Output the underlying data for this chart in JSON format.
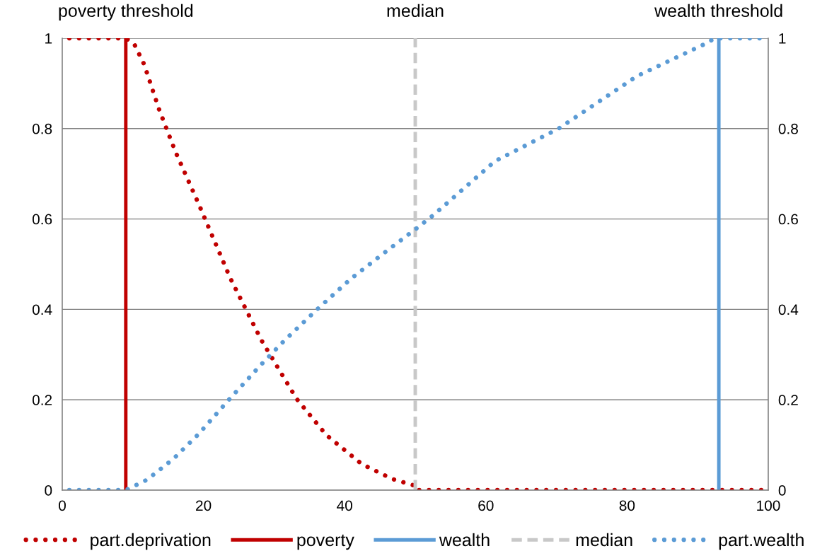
{
  "chart_data": {
    "type": "line",
    "xlim": [
      0,
      100
    ],
    "xticks": [
      0,
      20,
      40,
      60,
      80,
      100
    ],
    "ylim": [
      0,
      1
    ],
    "yticks": [
      0,
      0.2,
      0.4,
      0.6,
      0.8,
      1
    ],
    "y2lim": [
      0,
      1
    ],
    "y2ticks": [
      0,
      0.2,
      0.4,
      0.6,
      0.8,
      1
    ],
    "grid": "y",
    "legend": "bottom",
    "annotations": [
      {
        "text": "poverty threshold",
        "x": 9,
        "y": 1
      },
      {
        "text": "median",
        "x": 50,
        "y": 1
      },
      {
        "text": "wealth threshold",
        "x": 93,
        "y": 1
      }
    ],
    "series": [
      {
        "name": "part.deprivation",
        "color": "#c00000",
        "line_style": "dotted",
        "x": [
          1,
          9,
          10.2,
          11.6,
          13.7,
          16.0,
          19.3,
          23.8,
          28.2,
          33.2,
          37.4,
          42.4,
          46.7,
          49.7,
          50,
          100
        ],
        "values": [
          1,
          1,
          0.987,
          0.942,
          0.843,
          0.75,
          0.634,
          0.469,
          0.332,
          0.202,
          0.122,
          0.058,
          0.025,
          0.011,
          0,
          0
        ]
      },
      {
        "name": "poverty",
        "color": "#c00000",
        "line_style": "solid",
        "x": [
          9,
          9
        ],
        "values": [
          0,
          1
        ]
      },
      {
        "name": "wealth",
        "color": "#5b9bd5",
        "line_style": "solid",
        "x": [
          93,
          93
        ],
        "values": [
          0,
          1
        ]
      },
      {
        "name": "median",
        "color": "#c8c8c8",
        "line_style": "dashed",
        "x": [
          50,
          50
        ],
        "values": [
          0,
          1
        ]
      },
      {
        "name": "part.wealth",
        "color": "#5b9bd5",
        "line_style": "dotted",
        "x": [
          1,
          9,
          12.0,
          15.8,
          19.3,
          23.6,
          28.0,
          31.4,
          36.1,
          40.9,
          46.1,
          50.0,
          52.6,
          61.3,
          70.3,
          81.4,
          91.4,
          92.4,
          93,
          100
        ],
        "values": [
          0,
          0,
          0.023,
          0.07,
          0.124,
          0.2,
          0.275,
          0.33,
          0.4,
          0.468,
          0.531,
          0.577,
          0.609,
          0.728,
          0.8,
          0.916,
          0.99,
          1,
          1,
          1
        ]
      }
    ]
  }
}
